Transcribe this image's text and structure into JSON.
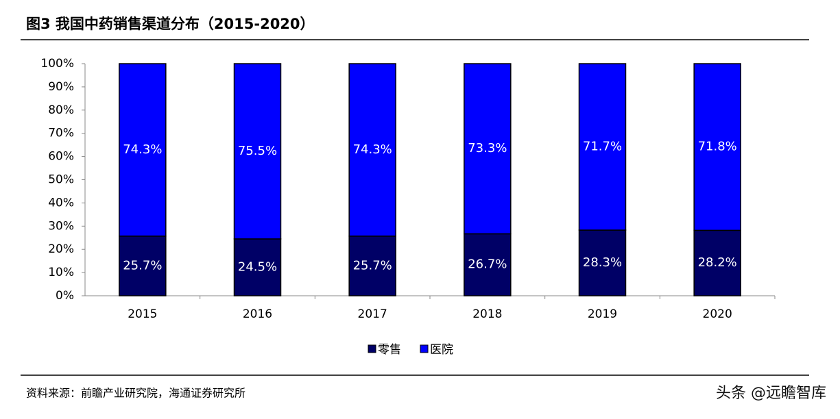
{
  "chart_data": {
    "type": "stacked-bar",
    "title": "图3  我国中药销售渠道分布（2015-2020）",
    "source": "资料来源：前瞻产业研究院，海通证券研究所",
    "watermark": "头条 @远瞻智库",
    "categories": [
      "2015",
      "2016",
      "2017",
      "2018",
      "2019",
      "2020"
    ],
    "series": [
      {
        "name": "零售",
        "color": "#000066",
        "values": [
          25.7,
          24.5,
          25.7,
          26.7,
          28.3,
          28.2
        ],
        "value_labels": [
          "25.7%",
          "24.5%",
          "25.7%",
          "26.7%",
          "28.3%",
          "28.2%"
        ]
      },
      {
        "name": "医院",
        "color": "#0000ff",
        "values": [
          74.3,
          75.5,
          74.3,
          73.3,
          71.7,
          71.8
        ],
        "value_labels": [
          "74.3%",
          "75.5%",
          "74.3%",
          "73.3%",
          "71.7%",
          "71.8%"
        ]
      }
    ],
    "ylim": [
      0,
      100
    ],
    "yticks": [
      {
        "value": 0,
        "label": "0%"
      },
      {
        "value": 10,
        "label": "10%"
      },
      {
        "value": 20,
        "label": "20%"
      },
      {
        "value": 30,
        "label": "30%"
      },
      {
        "value": 40,
        "label": "40%"
      },
      {
        "value": 50,
        "label": "50%"
      },
      {
        "value": 60,
        "label": "60%"
      },
      {
        "value": 70,
        "label": "70%"
      },
      {
        "value": 80,
        "label": "80%"
      },
      {
        "value": 90,
        "label": "90%"
      },
      {
        "value": 100,
        "label": "100%"
      }
    ],
    "legend": "bottom"
  }
}
